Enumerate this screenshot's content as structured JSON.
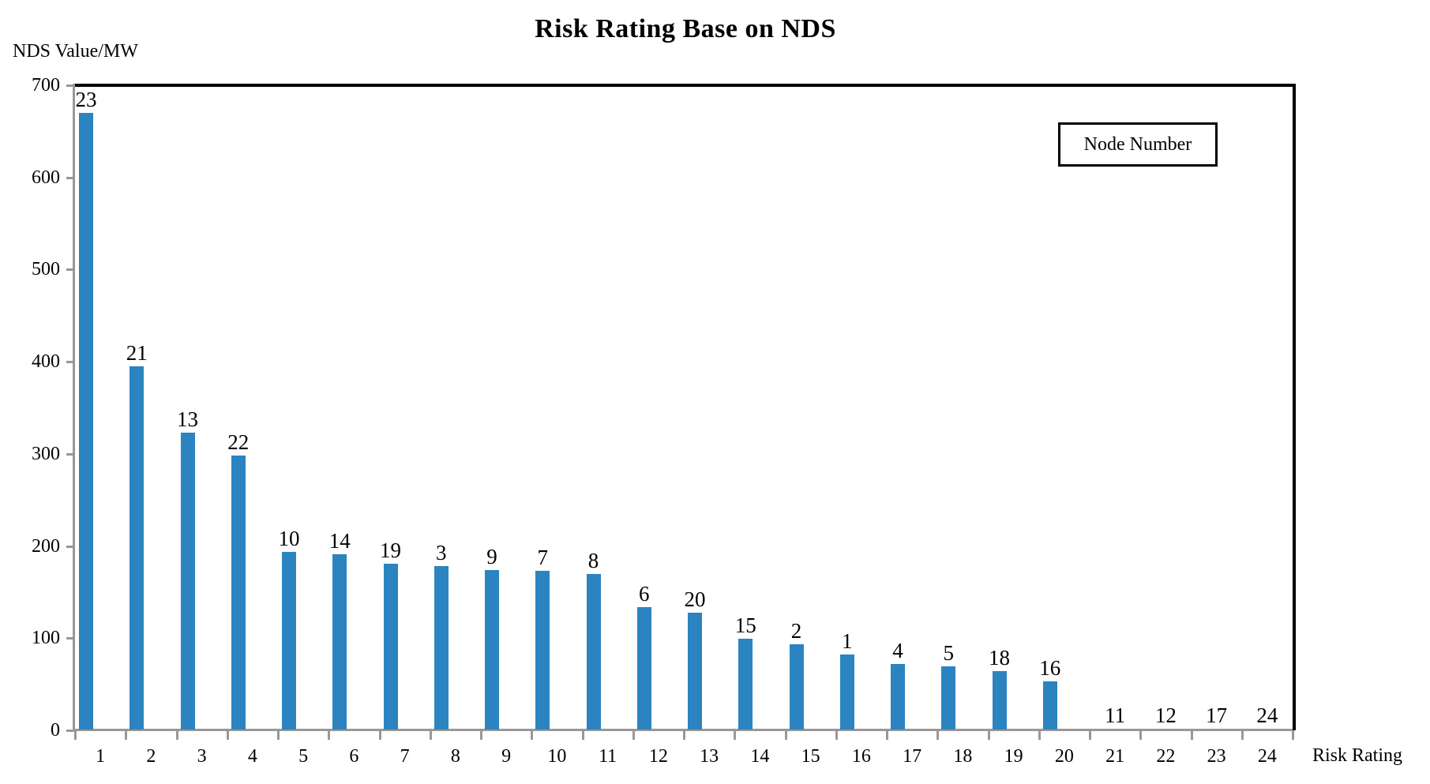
{
  "chart_data": {
    "type": "bar",
    "title": "Risk Rating Base on NDS",
    "y_axis_label": "NDS Value/MW",
    "x_axis_label": "Risk Rating",
    "legend": "Node Number",
    "legend_position": "top-right",
    "grid": false,
    "categories": [
      "1",
      "2",
      "3",
      "4",
      "5",
      "6",
      "7",
      "8",
      "9",
      "10",
      "11",
      "12",
      "13",
      "14",
      "15",
      "16",
      "17",
      "18",
      "19",
      "20",
      "21",
      "22",
      "23",
      "24"
    ],
    "node_labels": [
      "23",
      "21",
      "13",
      "22",
      "10",
      "14",
      "19",
      "3",
      "9",
      "7",
      "8",
      "6",
      "20",
      "15",
      "2",
      "1",
      "4",
      "5",
      "18",
      "16",
      "11",
      "12",
      "17",
      "24"
    ],
    "values": [
      670,
      395,
      323,
      298,
      194,
      191,
      181,
      178,
      174,
      173,
      170,
      134,
      128,
      99,
      93,
      82,
      72,
      69,
      64,
      53,
      0,
      0,
      0,
      0
    ],
    "ylim": [
      0,
      700
    ],
    "yticks": [
      0,
      100,
      200,
      300,
      400,
      500,
      600,
      700
    ],
    "bar_color": "#2B83BF",
    "axis_color": "#989898",
    "border_color": "#000000",
    "text_color": "#000000"
  }
}
